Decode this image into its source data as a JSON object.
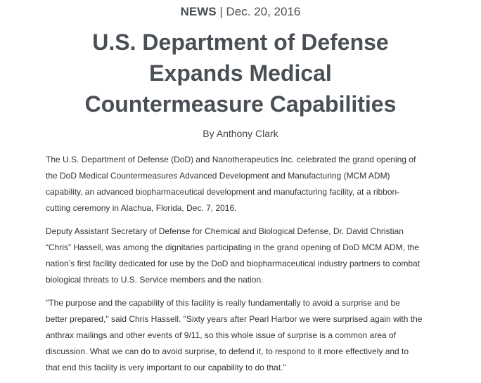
{
  "header": {
    "category": "NEWS",
    "separator": "|",
    "date": "Dec. 20, 2016"
  },
  "article": {
    "title_lines": [
      "U.S. Department of Defense",
      "Expands Medical",
      "Countermeasure Capabilities"
    ],
    "byline": "By Anthony Clark",
    "paragraphs": [
      [
        "The U.S. Department of Defense (DoD) and Nanotherapeutics Inc. celebrated the grand opening of",
        "the DoD Medical Countermeasures Advanced Development and Manufacturing (MCM ADM)",
        "capability, an advanced biopharmaceutical development and manufacturing facility, at a ribbon-",
        "cutting ceremony in Alachua, Florida, Dec. 7, 2016."
      ],
      [
        "Deputy Assistant Secretary of Defense for Chemical and Biological Defense, Dr. David Christian",
        "“Chris” Hassell, was among the dignitaries participating in the grand opening of DoD MCM ADM, the",
        "nation’s first facility dedicated for use by the DoD and biopharmaceutical industry partners to combat",
        "biological threats to U.S. Service members and the nation."
      ],
      [
        "\"The purpose and the capability of this facility is really fundamentally to avoid a surprise and be",
        "better prepared,\" said Chris Hassell. \"Sixty years after Pearl Harbor we were surprised again with the",
        "anthrax mailings and other events of 9/11, so this whole issue of surprise is a common area of",
        "discussion. What we can do to avoid surprise, to defend it, to respond to it more effectively and to",
        "that end this facility is very important to our capability to do that.\""
      ]
    ]
  }
}
